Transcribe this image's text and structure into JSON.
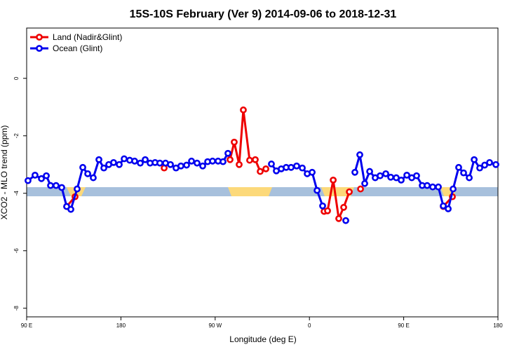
{
  "chart_data": {
    "type": "line",
    "title": "15S-10S February (Ver 9)   2014-09-06 to 2018-12-31",
    "x_label": "Longitude (deg E)",
    "y_label": "XCO2 - MLO trend (ppm)",
    "xlim": [
      90,
      540
    ],
    "ylim": [
      -8.3,
      1.75
    ],
    "xticks": [
      {
        "value": 90,
        "label": "90 E"
      },
      180,
      {
        "value": 270,
        "label": "90 W"
      },
      {
        "value": 360,
        "label": "0"
      },
      {
        "value": 450,
        "label": "90 E"
      },
      {
        "value": 540,
        "label": "180"
      }
    ],
    "yticks": [
      0,
      -2,
      -4,
      -6,
      -8
    ],
    "legend": "top-left",
    "series": [
      {
        "name": "Land (Nadir&Glint)",
        "color": "#ee0000",
        "x": [
          128.2,
          136.2,
          null,
          221.3,
          null,
          284.2,
          288.2,
          292.9,
          296.9,
          302.9,
          308.3,
          313.0,
          318.4,
          null,
          374.0,
          377.3,
          382.7,
          388.0,
          392.7,
          398.1,
          null,
          408.8,
          null,
          487.8,
          496.5
        ],
        "values": [
          -4.46,
          -4.12,
          null,
          -3.12,
          null,
          -2.83,
          -2.22,
          -3.0,
          -1.1,
          -2.85,
          -2.83,
          -3.24,
          -3.15,
          null,
          -4.63,
          -4.61,
          -3.54,
          -4.88,
          -4.49,
          -3.95,
          null,
          -3.85,
          null,
          -4.46,
          -4.12
        ]
      },
      {
        "name": "Ocean (Glint)",
        "color": "#0000ee",
        "x": [
          91.3,
          98.0,
          104.1,
          108.8,
          112.8,
          118.1,
          123.5,
          128.2,
          132.2,
          138.2,
          143.6,
          148.3,
          153.6,
          159.0,
          163.7,
          168.4,
          173.0,
          178.4,
          183.1,
          188.4,
          193.1,
          198.5,
          203.2,
          207.9,
          212.6,
          217.2,
          222.6,
          227.3,
          232.6,
          237.3,
          242.7,
          247.4,
          252.7,
          258.1,
          262.8,
          267.5,
          272.8,
          277.5,
          282.2,
          null,
          323.7,
          328.4,
          333.1,
          337.8,
          342.5,
          347.8,
          353.2,
          357.9,
          362.6,
          367.3,
          372.6,
          null,
          394.7,
          null,
          403.4,
          408.1,
          412.8,
          417.5,
          422.8,
          427.5,
          432.9,
          437.6,
          442.9,
          447.6,
          453.0,
          457.7,
          462.3,
          467.7,
          472.4,
          477.7,
          483.1,
          487.8,
          492.5,
          497.2,
          502.5,
          507.2,
          512.6,
          517.3,
          522.6,
          527.3,
          532.0,
          538.0
        ],
        "values": [
          -3.56,
          -3.37,
          -3.49,
          -3.39,
          -3.73,
          -3.73,
          -3.8,
          -4.46,
          -4.56,
          -3.85,
          -3.1,
          -3.32,
          -3.46,
          -2.83,
          -3.12,
          -3.0,
          -2.93,
          -3.0,
          -2.8,
          -2.85,
          -2.88,
          -2.95,
          -2.83,
          -2.95,
          -2.93,
          -2.95,
          -2.95,
          -3.0,
          -3.12,
          -3.05,
          -3.02,
          -2.88,
          -2.95,
          -3.05,
          -2.9,
          -2.88,
          -2.88,
          -2.9,
          -2.61,
          null,
          -2.98,
          -3.22,
          -3.15,
          -3.1,
          -3.1,
          -3.05,
          -3.12,
          -3.32,
          -3.27,
          -3.9,
          -4.44,
          null,
          -4.95,
          null,
          -3.27,
          -2.66,
          -3.66,
          -3.24,
          -3.46,
          -3.39,
          -3.32,
          -3.44,
          -3.46,
          -3.54,
          -3.37,
          -3.46,
          -3.39,
          -3.73,
          -3.73,
          -3.78,
          -3.78,
          -4.44,
          -4.54,
          -3.85,
          -3.1,
          -3.29,
          -3.46,
          -2.83,
          -3.12,
          -3.02,
          -2.93,
          -3.0
        ]
      }
    ]
  }
}
